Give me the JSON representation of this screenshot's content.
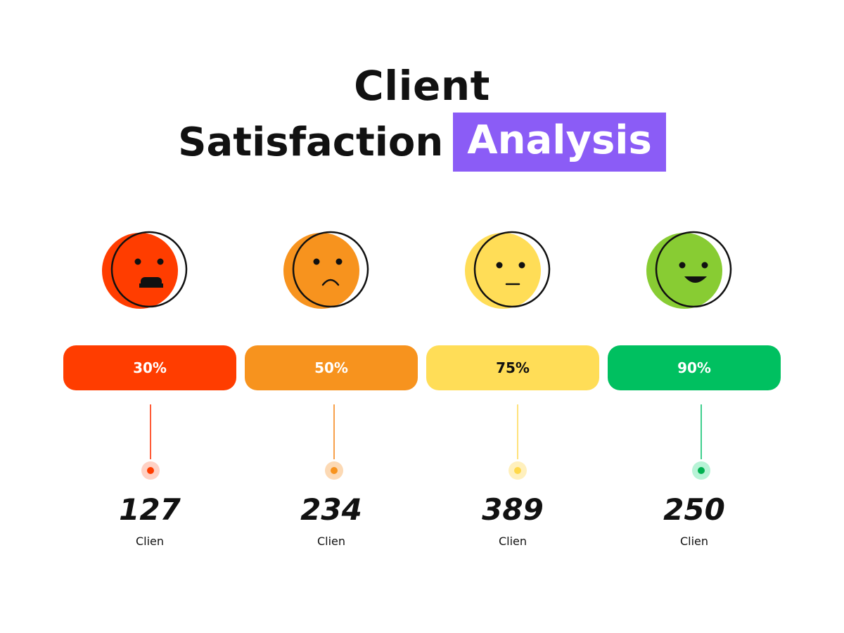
{
  "title": {
    "line1": "Client",
    "line2_plain": "Satisfaction",
    "line2_highlight": "Analysis",
    "highlight_color": "#8b5cf6"
  },
  "chart_data": {
    "type": "bar",
    "categories": [
      "Very Unsatisfied",
      "Unsatisfied",
      "Neutral",
      "Satisfied"
    ],
    "series": [
      {
        "name": "Satisfaction",
        "values": [
          30,
          50,
          75,
          90
        ]
      }
    ],
    "labels": [
      "30%",
      "50%",
      "75%",
      "90%"
    ],
    "counts": [
      "127",
      "234",
      "389",
      "250"
    ],
    "count_unit": "Clien",
    "colors": [
      "#ff3d00",
      "#f7931e",
      "#ffdd57",
      "#00c060"
    ],
    "face_colors": [
      "#ff3d00",
      "#f7931e",
      "#ffdd57",
      "#88cc33"
    ],
    "stem_colors": [
      "#ff5a36",
      "#f7a04a",
      "#ffe27a",
      "#3fcf8e"
    ],
    "dot_halo_colors": [
      "#ffd1c4",
      "#fcd9b4",
      "#fff0bd",
      "#b7f3d6"
    ],
    "dot_colors": [
      "#ff3d00",
      "#f7931e",
      "#ffd84a",
      "#00b050"
    ],
    "pill_text_colors": [
      "#ffffff",
      "#ffffff",
      "#111111",
      "#ffffff"
    ],
    "icons": [
      "angry-face-icon",
      "sad-face-icon",
      "neutral-face-icon",
      "happy-face-icon"
    ]
  }
}
